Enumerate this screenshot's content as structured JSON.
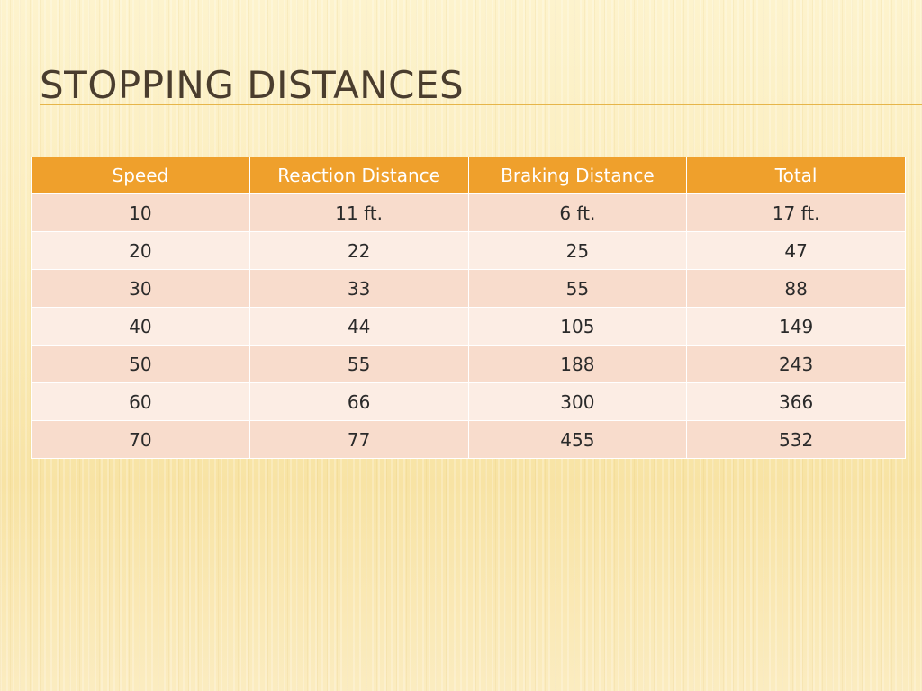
{
  "slide": {
    "title": "STOPPING DISTANCES"
  },
  "table": {
    "headers": [
      "Speed",
      "Reaction Distance",
      "Braking Distance",
      "Total"
    ],
    "rows": [
      [
        "10",
        "11 ft.",
        "6 ft.",
        "17 ft."
      ],
      [
        "20",
        "22",
        "25",
        "47"
      ],
      [
        "30",
        "33",
        "55",
        "88"
      ],
      [
        "40",
        "44",
        "105",
        "149"
      ],
      [
        "50",
        "55",
        "188",
        "243"
      ],
      [
        "60",
        "66",
        "300",
        "366"
      ],
      [
        "70",
        "77",
        "455",
        "532"
      ]
    ]
  },
  "colors": {
    "header_fill": "#efa02c",
    "row_odd_fill": "#f8dccc",
    "row_even_fill": "#fcede4",
    "title_color": "#4a3d2e"
  }
}
